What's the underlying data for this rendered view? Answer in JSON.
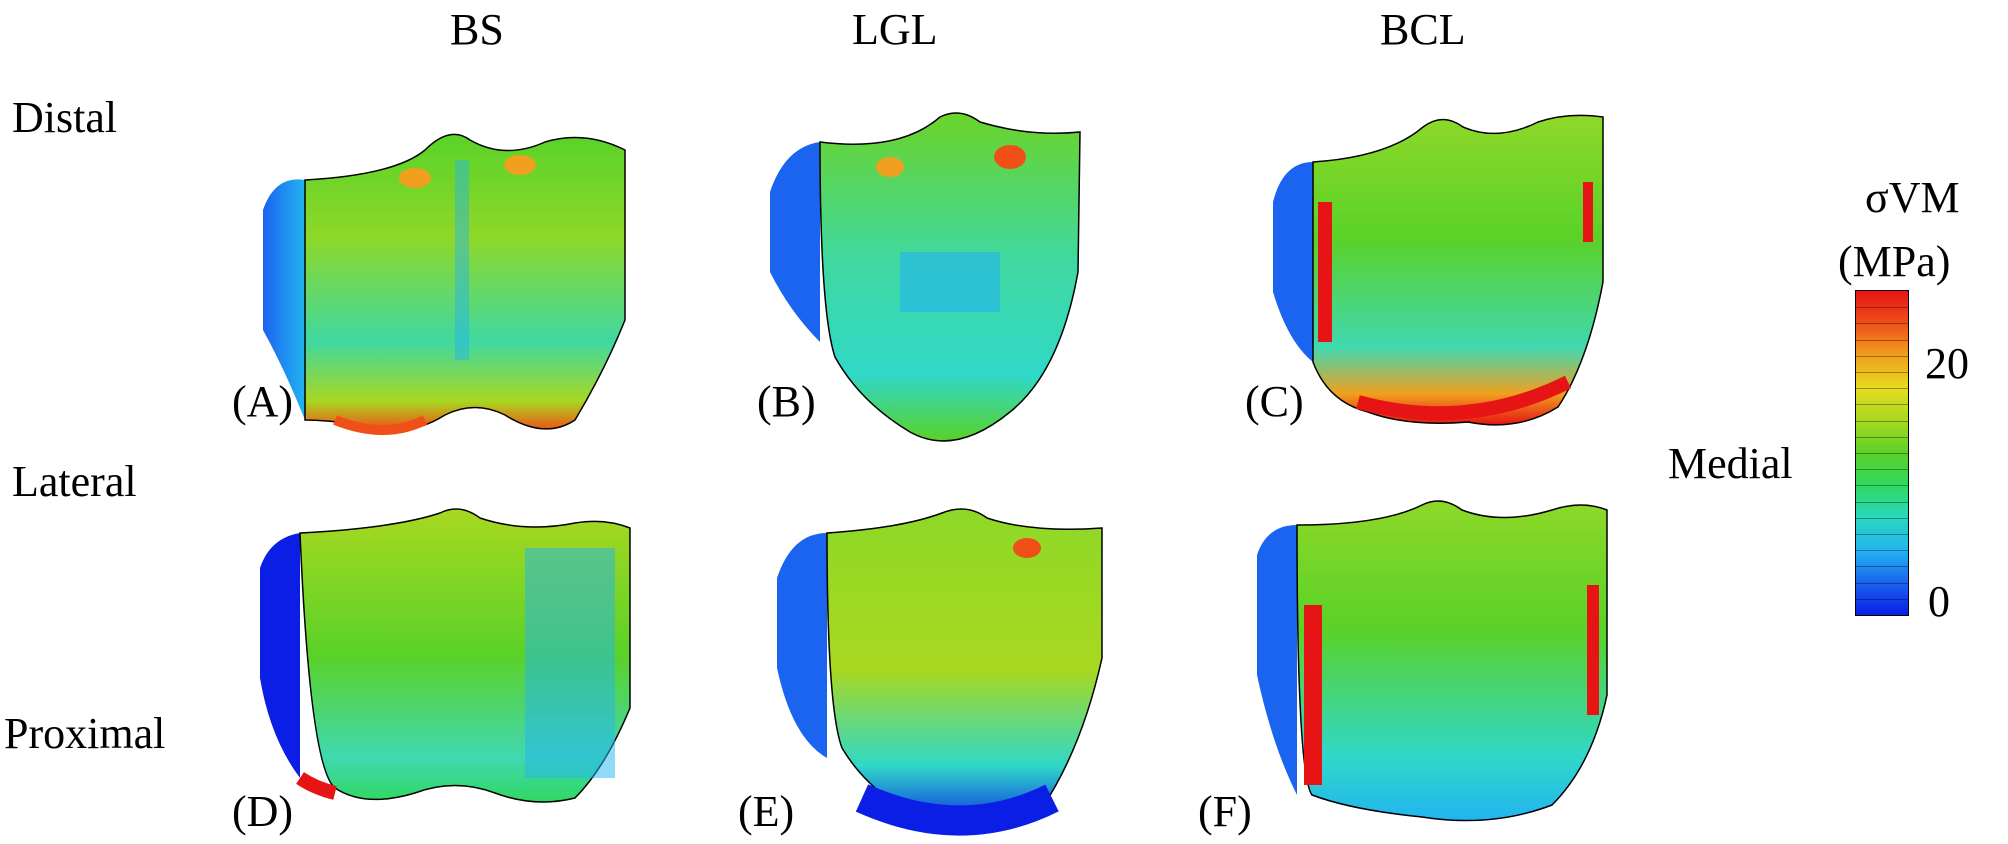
{
  "columns": [
    "BS",
    "LGL",
    "BCL"
  ],
  "row_labels": {
    "distal": "Distal",
    "lateral": "Lateral",
    "proximal": "Proximal",
    "medial": "Medial"
  },
  "panels": [
    {
      "letter": "(A)",
      "column": "BS",
      "row": "top"
    },
    {
      "letter": "(B)",
      "column": "LGL",
      "row": "top"
    },
    {
      "letter": "(C)",
      "column": "BCL",
      "row": "top"
    },
    {
      "letter": "(D)",
      "column": "BS",
      "row": "bottom"
    },
    {
      "letter": "(E)",
      "column": "LGL",
      "row": "bottom"
    },
    {
      "letter": "(F)",
      "column": "BCL",
      "row": "bottom"
    }
  ],
  "colorbar": {
    "title_line1": "σVM",
    "title_line2": "(MPa)",
    "max_label": "20",
    "min_label": "0",
    "colors": [
      "#0a1ee6",
      "#1a64f0",
      "#22b4f0",
      "#28d8c0",
      "#30d860",
      "#5ad228",
      "#a8d820",
      "#e6dc1e",
      "#f0a01e",
      "#f05018",
      "#e61414"
    ]
  }
}
